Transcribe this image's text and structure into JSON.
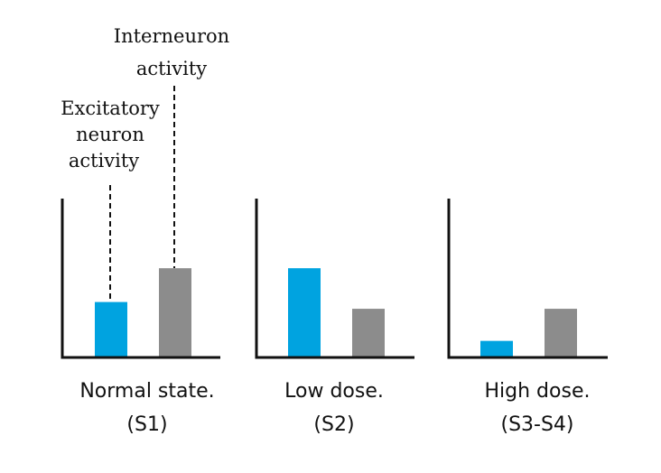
{
  "chart_data": [
    {
      "type": "bar",
      "categories": [
        "Excitatory neuron activity",
        "Interneuron activity"
      ],
      "values": [
        1.6,
        2.6
      ],
      "caption_line1": "Normal state.",
      "caption_line2": "(S1)",
      "ylim": [
        0,
        4.7
      ],
      "grid": false
    },
    {
      "type": "bar",
      "categories": [
        "Excitatory neuron activity",
        "Interneuron activity"
      ],
      "values": [
        2.6,
        1.4
      ],
      "caption_line1": "Low dose.",
      "caption_line2": "(S2)",
      "ylim": [
        0,
        4.7
      ],
      "grid": false
    },
    {
      "type": "bar",
      "categories": [
        "Excitatory neuron activity",
        "Interneuron activity"
      ],
      "values": [
        0.45,
        1.4
      ],
      "caption_line1": "High dose.",
      "caption_line2": "(S3-S4)",
      "ylim": [
        0,
        4.7
      ],
      "grid": false
    }
  ],
  "annotations": {
    "excitatory": [
      "Excitatory",
      "neuron",
      "activity"
    ],
    "interneuron": [
      "Interneuron",
      "activity"
    ]
  },
  "colors": {
    "excitatory": "#00a3e0",
    "interneuron": "#8c8c8c",
    "axis": "#111111"
  }
}
